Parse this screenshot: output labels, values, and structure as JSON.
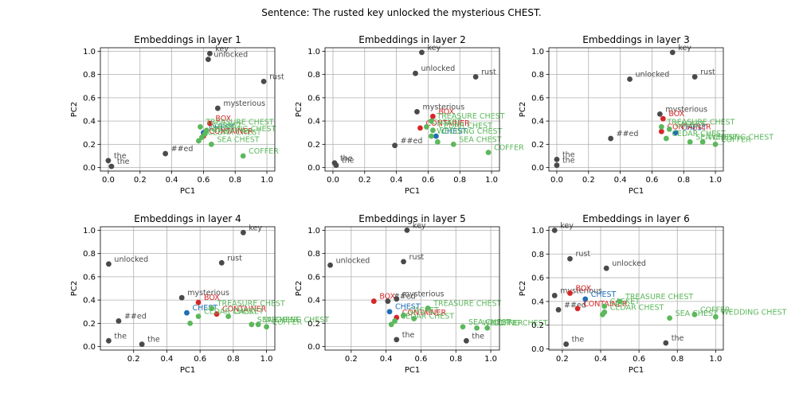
{
  "suptitle": "Sentence: The rusted key unlocked the mysterious CHEST.",
  "colors": {
    "context": "#4a4a4a",
    "target": "#1f6fb4",
    "related": "#d62728",
    "unrelated": "#5cb85c",
    "grid": "#b0b0b0"
  },
  "chart_data": [
    {
      "type": "scatter",
      "title": "Embeddings in layer 1",
      "xlabel": "PC1",
      "ylabel": "PC2",
      "xlim": [
        -0.05,
        1.05
      ],
      "ylim": [
        -0.03,
        1.03
      ],
      "xticks": [
        0.0,
        0.2,
        0.4,
        0.6,
        0.8,
        1.0
      ],
      "xticklabels": [
        "0.0",
        "0.2",
        "0.4",
        "0.6",
        "0.8",
        "1.0"
      ],
      "yticks": [
        0.0,
        0.2,
        0.4,
        0.6,
        0.8,
        1.0
      ],
      "yticklabels": [
        "0.0",
        "0.2",
        "0.4",
        "0.6",
        "0.8",
        "1.0"
      ],
      "grid": true,
      "points": [
        {
          "label": "the",
          "x": 0.0,
          "y": 0.06,
          "group": "context"
        },
        {
          "label": "the",
          "x": 0.02,
          "y": 0.01,
          "group": "context"
        },
        {
          "label": "##ed",
          "x": 0.36,
          "y": 0.12,
          "group": "context"
        },
        {
          "label": "key",
          "x": 0.64,
          "y": 0.98,
          "group": "context"
        },
        {
          "label": "unlocked",
          "x": 0.63,
          "y": 0.93,
          "group": "context"
        },
        {
          "label": "rust",
          "x": 0.98,
          "y": 0.74,
          "group": "context"
        },
        {
          "label": "mysterious",
          "x": 0.69,
          "y": 0.51,
          "group": "context"
        },
        {
          "label": "CHEST",
          "x": 0.6,
          "y": 0.3,
          "group": "target"
        },
        {
          "label": "BOX",
          "x": 0.64,
          "y": 0.38,
          "group": "related"
        },
        {
          "label": "CONTAINER",
          "x": 0.6,
          "y": 0.27,
          "group": "related"
        },
        {
          "label": "TREASURE CHEST",
          "x": 0.58,
          "y": 0.35,
          "group": "unrelated"
        },
        {
          "label": "CASKET",
          "x": 0.62,
          "y": 0.32,
          "group": "unrelated"
        },
        {
          "label": "WEDDING CHEST",
          "x": 0.61,
          "y": 0.29,
          "group": "unrelated"
        },
        {
          "label": "CEDAR CHEST",
          "x": 0.59,
          "y": 0.26,
          "group": "unrelated"
        },
        {
          "label": "SEA CHEST",
          "x": 0.65,
          "y": 0.2,
          "group": "unrelated"
        },
        {
          "label": "COFFER",
          "x": 0.85,
          "y": 0.1,
          "group": "unrelated"
        },
        {
          "label": "",
          "x": 0.57,
          "y": 0.23,
          "group": "unrelated"
        }
      ]
    },
    {
      "type": "scatter",
      "title": "Embeddings in layer 2",
      "xlabel": "PC1",
      "ylabel": "PC2",
      "xlim": [
        -0.05,
        1.05
      ],
      "ylim": [
        -0.03,
        1.03
      ],
      "xticks": [
        0.0,
        0.2,
        0.4,
        0.6,
        0.8,
        1.0
      ],
      "xticklabels": [
        "0.0",
        "0.2",
        "0.4",
        "0.6",
        "0.8",
        "1.0"
      ],
      "yticks": [
        0.0,
        0.2,
        0.4,
        0.6,
        0.8,
        1.0
      ],
      "yticklabels": [
        "0.0",
        "0.2",
        "0.4",
        "0.6",
        "0.8",
        "1.0"
      ],
      "grid": true,
      "points": [
        {
          "label": "the",
          "x": 0.01,
          "y": 0.04,
          "group": "context"
        },
        {
          "label": "the",
          "x": 0.02,
          "y": 0.02,
          "group": "context"
        },
        {
          "label": "##ed",
          "x": 0.39,
          "y": 0.19,
          "group": "context"
        },
        {
          "label": "key",
          "x": 0.56,
          "y": 0.99,
          "group": "context"
        },
        {
          "label": "unlocked",
          "x": 0.52,
          "y": 0.81,
          "group": "context"
        },
        {
          "label": "rust",
          "x": 0.9,
          "y": 0.78,
          "group": "context"
        },
        {
          "label": "mysterious",
          "x": 0.53,
          "y": 0.48,
          "group": "context"
        },
        {
          "label": "CHEST",
          "x": 0.65,
          "y": 0.27,
          "group": "target"
        },
        {
          "label": "BOX",
          "x": 0.63,
          "y": 0.44,
          "group": "related"
        },
        {
          "label": "CONTAINER",
          "x": 0.55,
          "y": 0.34,
          "group": "related"
        },
        {
          "label": "TREASURE CHEST",
          "x": 0.62,
          "y": 0.4,
          "group": "unrelated"
        },
        {
          "label": "CASKET",
          "x": 0.59,
          "y": 0.35,
          "group": "unrelated"
        },
        {
          "label": "CEDAR CHEST",
          "x": 0.63,
          "y": 0.32,
          "group": "unrelated"
        },
        {
          "label": "WEDDING CHEST",
          "x": 0.62,
          "y": 0.27,
          "group": "unrelated"
        },
        {
          "label": "SEA CHEST",
          "x": 0.76,
          "y": 0.2,
          "group": "unrelated"
        },
        {
          "label": "COFFER",
          "x": 0.98,
          "y": 0.13,
          "group": "unrelated"
        },
        {
          "label": "",
          "x": 0.66,
          "y": 0.22,
          "group": "unrelated"
        }
      ]
    },
    {
      "type": "scatter",
      "title": "Embeddings in layer 3",
      "xlabel": "PC1",
      "ylabel": "PC2",
      "xlim": [
        -0.05,
        1.05
      ],
      "ylim": [
        -0.03,
        1.03
      ],
      "xticks": [
        0.0,
        0.2,
        0.4,
        0.6,
        0.8,
        1.0
      ],
      "xticklabels": [
        "0.0",
        "0.2",
        "0.4",
        "0.6",
        "0.8",
        "1.0"
      ],
      "yticks": [
        0.0,
        0.2,
        0.4,
        0.6,
        0.8,
        1.0
      ],
      "yticklabels": [
        "0.0",
        "0.2",
        "0.4",
        "0.6",
        "0.8",
        "1.0"
      ],
      "grid": true,
      "points": [
        {
          "label": "the",
          "x": 0.0,
          "y": 0.07,
          "group": "context"
        },
        {
          "label": "the",
          "x": 0.0,
          "y": 0.02,
          "group": "context"
        },
        {
          "label": "##ed",
          "x": 0.34,
          "y": 0.25,
          "group": "context"
        },
        {
          "label": "key",
          "x": 0.73,
          "y": 0.99,
          "group": "context"
        },
        {
          "label": "unlocked",
          "x": 0.46,
          "y": 0.76,
          "group": "context"
        },
        {
          "label": "rust",
          "x": 0.87,
          "y": 0.78,
          "group": "context"
        },
        {
          "label": "mysterious",
          "x": 0.65,
          "y": 0.46,
          "group": "context"
        },
        {
          "label": "CHEST",
          "x": 0.75,
          "y": 0.3,
          "group": "target"
        },
        {
          "label": "BOX",
          "x": 0.67,
          "y": 0.42,
          "group": "related"
        },
        {
          "label": "CONTAINER",
          "x": 0.66,
          "y": 0.31,
          "group": "related"
        },
        {
          "label": "TREASURE CHEST",
          "x": 0.66,
          "y": 0.35,
          "group": "unrelated"
        },
        {
          "label": "CASKET",
          "x": 0.71,
          "y": 0.33,
          "group": "unrelated"
        },
        {
          "label": "CEDAR CHEST",
          "x": 0.69,
          "y": 0.25,
          "group": "unrelated"
        },
        {
          "label": "SEA CHEST",
          "x": 0.84,
          "y": 0.22,
          "group": "unrelated"
        },
        {
          "label": "WEDDING CHEST",
          "x": 0.92,
          "y": 0.22,
          "group": "unrelated"
        },
        {
          "label": "COFFER",
          "x": 1.0,
          "y": 0.2,
          "group": "unrelated"
        }
      ]
    },
    {
      "type": "scatter",
      "title": "Embeddings in layer 4",
      "xlabel": "PC1",
      "ylabel": "PC2",
      "xlim": [
        0.0,
        1.05
      ],
      "ylim": [
        -0.03,
        1.03
      ],
      "xticks": [
        0.2,
        0.4,
        0.6,
        0.8,
        1.0
      ],
      "xticklabels": [
        "0.2",
        "0.4",
        "0.6",
        "0.8",
        "1.0"
      ],
      "yticks": [
        0.0,
        0.2,
        0.4,
        0.6,
        0.8,
        1.0
      ],
      "yticklabels": [
        "0.0",
        "0.2",
        "0.4",
        "0.6",
        "0.8",
        "1.0"
      ],
      "grid": true,
      "points": [
        {
          "label": "the",
          "x": 0.05,
          "y": 0.05,
          "group": "context"
        },
        {
          "label": "the",
          "x": 0.25,
          "y": 0.02,
          "group": "context"
        },
        {
          "label": "##ed",
          "x": 0.11,
          "y": 0.22,
          "group": "context"
        },
        {
          "label": "key",
          "x": 0.86,
          "y": 0.98,
          "group": "context"
        },
        {
          "label": "unlocked",
          "x": 0.05,
          "y": 0.71,
          "group": "context"
        },
        {
          "label": "rust",
          "x": 0.73,
          "y": 0.72,
          "group": "context"
        },
        {
          "label": "mysterious",
          "x": 0.49,
          "y": 0.42,
          "group": "context"
        },
        {
          "label": "CHEST",
          "x": 0.52,
          "y": 0.29,
          "group": "target"
        },
        {
          "label": "BOX",
          "x": 0.59,
          "y": 0.38,
          "group": "related"
        },
        {
          "label": "CONTAINER",
          "x": 0.7,
          "y": 0.28,
          "group": "related"
        },
        {
          "label": "TREASURE CHEST",
          "x": 0.67,
          "y": 0.33,
          "group": "unrelated"
        },
        {
          "label": "CEDAR CHEST",
          "x": 0.59,
          "y": 0.26,
          "group": "unrelated"
        },
        {
          "label": "CASKET",
          "x": 0.77,
          "y": 0.26,
          "group": "unrelated"
        },
        {
          "label": "SEA CHEST",
          "x": 0.91,
          "y": 0.19,
          "group": "unrelated"
        },
        {
          "label": "WEDDING CHEST",
          "x": 0.95,
          "y": 0.19,
          "group": "unrelated"
        },
        {
          "label": "COFFER",
          "x": 1.0,
          "y": 0.17,
          "group": "unrelated"
        },
        {
          "label": "",
          "x": 0.54,
          "y": 0.2,
          "group": "unrelated"
        }
      ]
    },
    {
      "type": "scatter",
      "title": "Embeddings in layer 5",
      "xlabel": "PC1",
      "ylabel": "PC2",
      "xlim": [
        0.05,
        1.05
      ],
      "ylim": [
        -0.03,
        1.03
      ],
      "xticks": [
        0.2,
        0.4,
        0.6,
        0.8,
        1.0
      ],
      "xticklabels": [
        "0.2",
        "0.4",
        "0.6",
        "0.8",
        "1.0"
      ],
      "yticks": [
        0.0,
        0.2,
        0.4,
        0.6,
        0.8,
        1.0
      ],
      "yticklabels": [
        "0.0",
        "0.2",
        "0.4",
        "0.6",
        "0.8",
        "1.0"
      ],
      "grid": true,
      "points": [
        {
          "label": "the",
          "x": 0.46,
          "y": 0.06,
          "group": "context"
        },
        {
          "label": "the",
          "x": 0.86,
          "y": 0.05,
          "group": "context"
        },
        {
          "label": "##ed",
          "x": 0.41,
          "y": 0.39,
          "group": "context"
        },
        {
          "label": "key",
          "x": 0.52,
          "y": 1.0,
          "group": "context"
        },
        {
          "label": "unlocked",
          "x": 0.08,
          "y": 0.7,
          "group": "context"
        },
        {
          "label": "rust",
          "x": 0.5,
          "y": 0.73,
          "group": "context"
        },
        {
          "label": "mysterious",
          "x": 0.46,
          "y": 0.41,
          "group": "context"
        },
        {
          "label": "CHEST",
          "x": 0.42,
          "y": 0.3,
          "group": "target"
        },
        {
          "label": "BOX",
          "x": 0.33,
          "y": 0.39,
          "group": "related"
        },
        {
          "label": "CONTAINER",
          "x": 0.46,
          "y": 0.25,
          "group": "related"
        },
        {
          "label": "TREASURE CHEST",
          "x": 0.64,
          "y": 0.33,
          "group": "unrelated"
        },
        {
          "label": "CASKET",
          "x": 0.5,
          "y": 0.27,
          "group": "unrelated"
        },
        {
          "label": "CEDAR CHEST",
          "x": 0.45,
          "y": 0.22,
          "group": "unrelated"
        },
        {
          "label": "SEA CHEST",
          "x": 0.84,
          "y": 0.17,
          "group": "unrelated"
        },
        {
          "label": "WEDDING CHEST",
          "x": 0.92,
          "y": 0.16,
          "group": "unrelated"
        },
        {
          "label": "COFFER",
          "x": 0.98,
          "y": 0.16,
          "group": "unrelated"
        },
        {
          "label": "",
          "x": 0.43,
          "y": 0.19,
          "group": "unrelated"
        },
        {
          "label": "",
          "x": 0.56,
          "y": 0.24,
          "group": "unrelated"
        }
      ]
    },
    {
      "type": "scatter",
      "title": "Embeddings in layer 6",
      "xlabel": "PC1",
      "ylabel": "PC2",
      "xlim": [
        0.13,
        1.04
      ],
      "ylim": [
        -0.01,
        1.03
      ],
      "xticks": [
        0.2,
        0.4,
        0.6,
        0.8,
        1.0
      ],
      "xticklabels": [
        "0.2",
        "0.4",
        "0.6",
        "0.8",
        "1.0"
      ],
      "yticks": [
        0.0,
        0.2,
        0.4,
        0.6,
        0.8,
        1.0
      ],
      "yticklabels": [
        "0.0",
        "0.2",
        "0.4",
        "0.6",
        "0.8",
        "1.0"
      ],
      "grid": true,
      "points": [
        {
          "label": "key",
          "x": 0.16,
          "y": 1.0,
          "group": "context"
        },
        {
          "label": "rust",
          "x": 0.24,
          "y": 0.76,
          "group": "context"
        },
        {
          "label": "unlocked",
          "x": 0.43,
          "y": 0.68,
          "group": "context"
        },
        {
          "label": "mysterious",
          "x": 0.16,
          "y": 0.45,
          "group": "context"
        },
        {
          "label": "##ed",
          "x": 0.18,
          "y": 0.33,
          "group": "context"
        },
        {
          "label": "the",
          "x": 0.22,
          "y": 0.04,
          "group": "context"
        },
        {
          "label": "the",
          "x": 0.74,
          "y": 0.05,
          "group": "context"
        },
        {
          "label": "CHEST",
          "x": 0.32,
          "y": 0.42,
          "group": "target"
        },
        {
          "label": "BOX",
          "x": 0.24,
          "y": 0.47,
          "group": "related"
        },
        {
          "label": "CONTAINER",
          "x": 0.28,
          "y": 0.34,
          "group": "related"
        },
        {
          "label": "TREASURE CHEST",
          "x": 0.5,
          "y": 0.4,
          "group": "unrelated"
        },
        {
          "label": "CASKET",
          "x": 0.42,
          "y": 0.36,
          "group": "unrelated"
        },
        {
          "label": "CEDAR CHEST",
          "x": 0.42,
          "y": 0.31,
          "group": "unrelated"
        },
        {
          "label": "SEA CHEST",
          "x": 0.76,
          "y": 0.26,
          "group": "unrelated"
        },
        {
          "label": "COFFER",
          "x": 0.89,
          "y": 0.29,
          "group": "unrelated"
        },
        {
          "label": "WEDDING CHEST",
          "x": 1.0,
          "y": 0.27,
          "group": "unrelated"
        },
        {
          "label": "",
          "x": 0.41,
          "y": 0.29,
          "group": "unrelated"
        }
      ]
    }
  ]
}
